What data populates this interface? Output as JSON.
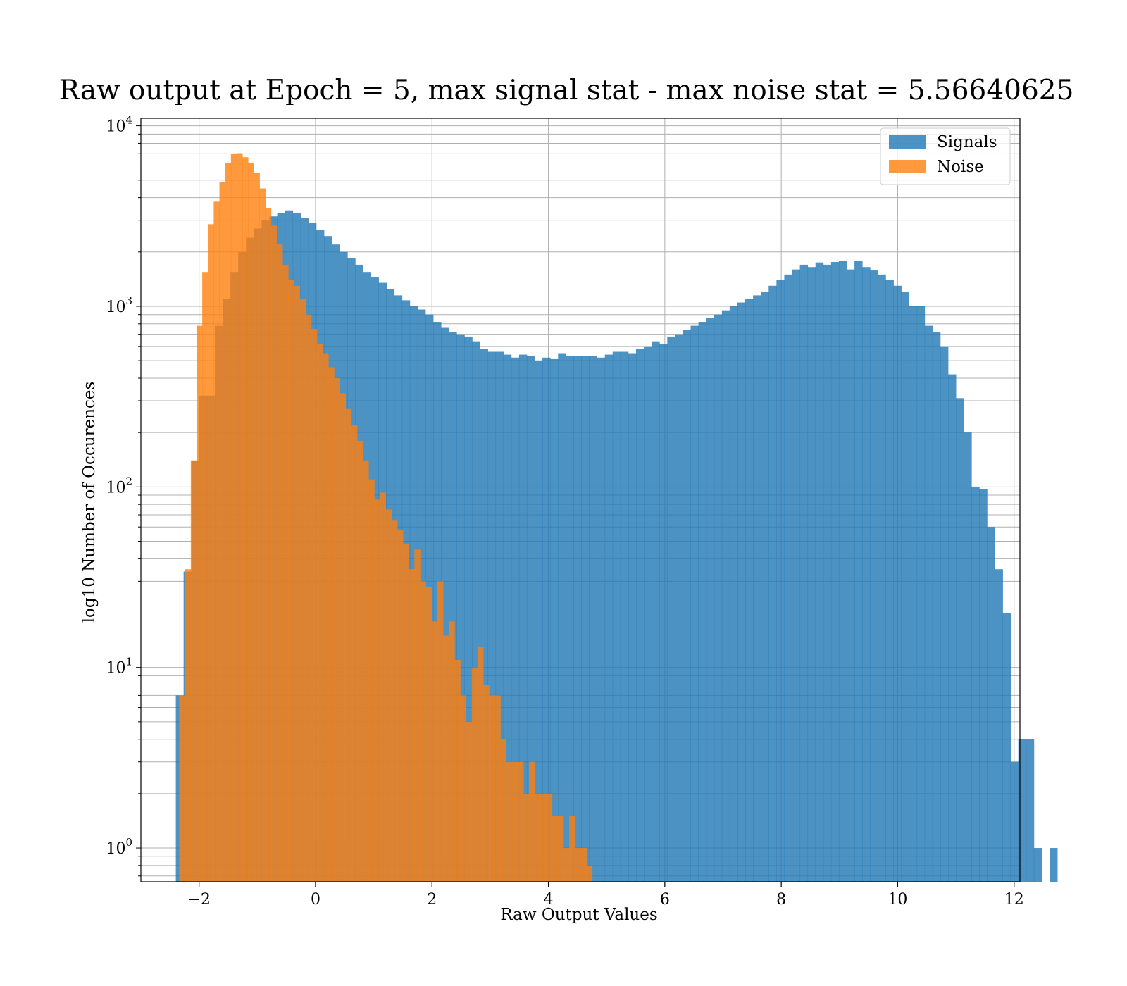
{
  "chart_data": {
    "type": "bar",
    "title": "Raw output at Epoch = 5, max signal stat - max noise stat = 5.56640625",
    "xlabel": "Raw Output Values",
    "ylabel": "log10 Number of Occurences",
    "xlim": [
      -3.0,
      12.1
    ],
    "ylim": [
      0.65,
      11000
    ],
    "yscale": "log",
    "grid": true,
    "legend_position": "top-right",
    "x_ticks": [
      {
        "value": -2,
        "label": "−2"
      },
      {
        "value": 0,
        "label": "0"
      },
      {
        "value": 2,
        "label": "2"
      },
      {
        "value": 4,
        "label": "4"
      },
      {
        "value": 6,
        "label": "6"
      },
      {
        "value": 8,
        "label": "8"
      },
      {
        "value": 10,
        "label": "10"
      },
      {
        "value": 12,
        "label": "12"
      }
    ],
    "y_ticks": [
      {
        "value": 1,
        "base": "10",
        "exp": "0"
      },
      {
        "value": 10,
        "base": "10",
        "exp": "1"
      },
      {
        "value": 100,
        "base": "10",
        "exp": "2"
      },
      {
        "value": 1000,
        "base": "10",
        "exp": "3"
      },
      {
        "value": 10000,
        "base": "10",
        "exp": "4"
      }
    ],
    "series": [
      {
        "name": "Signals",
        "color": "#1f77b4",
        "bin_start": -2.4,
        "bin_width": 0.134,
        "values": [
          7,
          34,
          140,
          320,
          320,
          780,
          1100,
          1550,
          2000,
          2400,
          2700,
          3000,
          3150,
          3300,
          3400,
          3300,
          3100,
          2900,
          2650,
          2450,
          2200,
          2000,
          1850,
          1700,
          1550,
          1450,
          1350,
          1250,
          1150,
          1080,
          1000,
          960,
          900,
          820,
          760,
          720,
          700,
          680,
          640,
          580,
          560,
          560,
          540,
          520,
          540,
          530,
          500,
          520,
          510,
          550,
          530,
          530,
          530,
          530,
          520,
          540,
          560,
          560,
          550,
          580,
          600,
          640,
          620,
          680,
          700,
          740,
          780,
          820,
          860,
          900,
          950,
          1000,
          1050,
          1100,
          1150,
          1200,
          1300,
          1400,
          1500,
          1600,
          1700,
          1650,
          1750,
          1700,
          1760,
          1780,
          1600,
          1780,
          1650,
          1580,
          1500,
          1400,
          1300,
          1200,
          1000,
          1000,
          780,
          720,
          600,
          420,
          310,
          200,
          100,
          97,
          60,
          35,
          20,
          3,
          4,
          4,
          1,
          0,
          1
        ]
      },
      {
        "name": "Noise",
        "color": "#ff7f0e",
        "bin_start": -2.34,
        "bin_width": 0.0985,
        "values": [
          7,
          35,
          140,
          780,
          1550,
          2850,
          3800,
          4900,
          6200,
          7000,
          7050,
          6700,
          6200,
          5500,
          4500,
          3500,
          2800,
          2200,
          1700,
          1400,
          1300,
          1100,
          900,
          750,
          620,
          550,
          460,
          400,
          330,
          270,
          220,
          180,
          140,
          110,
          85,
          93,
          75,
          65,
          58,
          48,
          35,
          45,
          30,
          28,
          18,
          30,
          15,
          18,
          11,
          7,
          5,
          10,
          13,
          8,
          7,
          7,
          4,
          3,
          3,
          3,
          2,
          3,
          2,
          2,
          2,
          1.5,
          1.5,
          1,
          1.5,
          1,
          1,
          0.8
        ]
      }
    ]
  }
}
